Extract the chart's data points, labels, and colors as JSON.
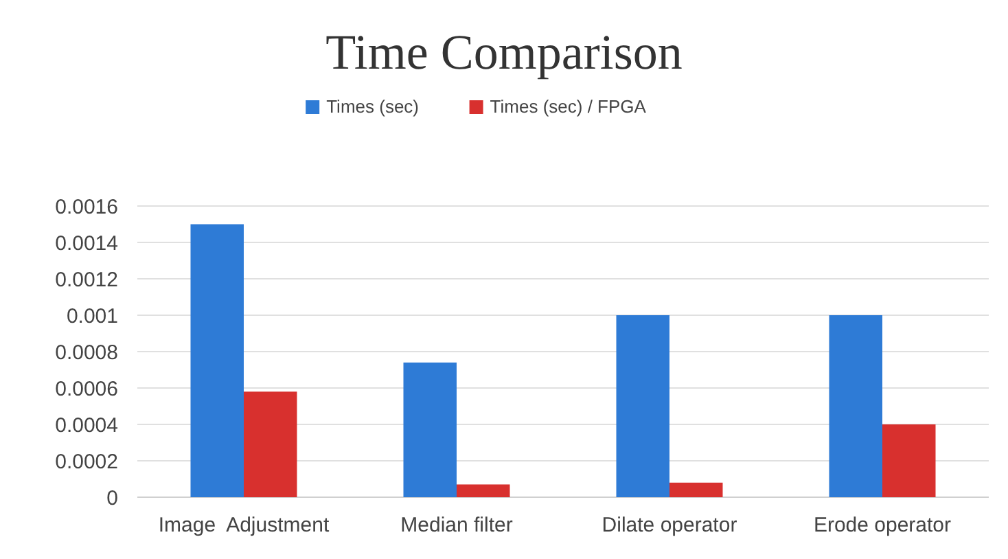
{
  "chart_data": {
    "type": "bar",
    "title": "Time Comparison",
    "categories": [
      "Image  Adjustment",
      "Median filter",
      "Dilate operator",
      "Erode operator"
    ],
    "series": [
      {
        "name": "Times (sec)",
        "color": "#2e7bd6",
        "values": [
          0.0015,
          0.00074,
          0.001,
          0.001
        ]
      },
      {
        "name": "Times (sec) / FPGA",
        "color": "#d8302e",
        "values": [
          0.00058,
          7e-05,
          8e-05,
          0.0004
        ]
      }
    ],
    "ylim": [
      0,
      0.0016
    ],
    "yticks": [
      0,
      0.0002,
      0.0004,
      0.0006,
      0.0008,
      0.001,
      0.0012,
      0.0014,
      0.0016
    ],
    "grid": "y",
    "legend": "top"
  }
}
